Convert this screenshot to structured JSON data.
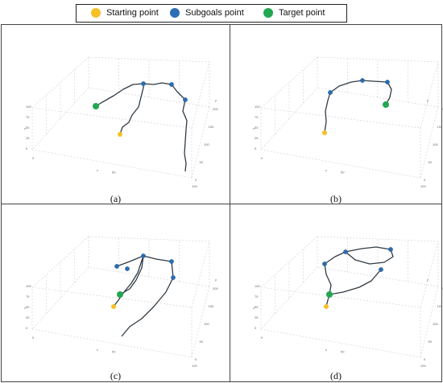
{
  "legend": {
    "start": {
      "label": "Starting point",
      "color": "#f6c026"
    },
    "subgoal": {
      "label": "Subgoals point",
      "color": "#2a6eb5"
    },
    "target": {
      "label": "Target point",
      "color": "#22a850"
    }
  },
  "chart_data": [
    {
      "type": "line3d",
      "panel": "(a)",
      "axes": {
        "x": "x",
        "y": "y",
        "z": "z"
      },
      "y_ticks": [
        "0",
        "50",
        "100",
        "150",
        "200"
      ],
      "x_ticks": [
        "0",
        "50",
        "100"
      ],
      "z_ticks": [
        "0",
        "25",
        "50",
        "75",
        "100"
      ],
      "start": [
        148,
        166
      ],
      "subgoals": [
        [
          177,
          103
        ],
        [
          212,
          104
        ],
        [
          229,
          123
        ]
      ],
      "target": [
        118,
        131
      ],
      "path": [
        [
          148,
          166
        ],
        [
          151,
          157
        ],
        [
          159,
          151
        ],
        [
          163,
          142
        ],
        [
          171,
          132
        ],
        [
          174,
          120
        ],
        [
          177,
          108
        ],
        [
          177,
          103
        ],
        [
          190,
          104
        ],
        [
          200,
          102
        ],
        [
          212,
          104
        ],
        [
          219,
          113
        ],
        [
          229,
          123
        ],
        [
          226,
          137
        ],
        [
          231,
          149
        ],
        [
          230,
          160
        ],
        [
          229,
          175
        ],
        [
          228,
          190
        ],
        [
          230,
          202
        ],
        [
          229,
          212
        ]
      ],
      "path2": [
        [
          118,
          131
        ],
        [
          126,
          126
        ],
        [
          140,
          118
        ],
        [
          152,
          110
        ],
        [
          164,
          104
        ],
        [
          177,
          103
        ]
      ]
    },
    {
      "type": "line3d",
      "panel": "(b)",
      "axes": {
        "x": "x",
        "y": "y",
        "z": "z"
      },
      "y_ticks": [
        "0",
        "50",
        "100",
        "150",
        "200"
      ],
      "x_ticks": [
        "0",
        "50",
        "100"
      ],
      "z_ticks": [
        "0",
        "25",
        "50",
        "75",
        "100"
      ],
      "start": [
        402,
        164
      ],
      "subgoals": [
        [
          409,
          114
        ],
        [
          449,
          99
        ],
        [
          480,
          101
        ]
      ],
      "target": [
        478,
        129
      ],
      "path": [
        [
          402,
          164
        ],
        [
          404,
          150
        ],
        [
          403,
          137
        ],
        [
          406,
          124
        ],
        [
          409,
          114
        ],
        [
          420,
          106
        ],
        [
          435,
          101
        ],
        [
          449,
          99
        ],
        [
          463,
          100
        ],
        [
          480,
          101
        ],
        [
          485,
          110
        ],
        [
          483,
          120
        ],
        [
          478,
          129
        ]
      ]
    },
    {
      "type": "line3d",
      "panel": "(c)",
      "axes": {
        "x": "x",
        "y": "y",
        "z": "z"
      },
      "y_ticks": [
        "0",
        "50",
        "100",
        "150",
        "200"
      ],
      "x_ticks": [
        "0",
        "50",
        "100"
      ],
      "z_ticks": [
        "0",
        "25",
        "50",
        "75",
        "100"
      ],
      "start": [
        140,
        380
      ],
      "subgoals": [
        [
          144,
          330
        ],
        [
          177,
          317
        ],
        [
          212,
          324
        ],
        [
          214,
          344
        ],
        [
          157,
          333
        ]
      ],
      "target": [
        148,
        365
      ],
      "path": [
        [
          140,
          380
        ],
        [
          146,
          372
        ],
        [
          153,
          362
        ],
        [
          162,
          351
        ],
        [
          170,
          338
        ],
        [
          177,
          317
        ],
        [
          175,
          332
        ],
        [
          168,
          347
        ],
        [
          160,
          358
        ],
        [
          148,
          365
        ]
      ],
      "path2": [
        [
          144,
          330
        ],
        [
          160,
          324
        ],
        [
          177,
          317
        ],
        [
          193,
          321
        ],
        [
          212,
          324
        ],
        [
          214,
          344
        ],
        [
          205,
          362
        ],
        [
          190,
          380
        ],
        [
          175,
          395
        ],
        [
          160,
          405
        ],
        [
          150,
          417
        ]
      ]
    },
    {
      "type": "line3d",
      "panel": "(d)",
      "axes": {
        "x": "x",
        "y": "y",
        "z": "z"
      },
      "y_ticks": [
        "0",
        "50",
        "100",
        "150",
        "200"
      ],
      "x_ticks": [
        "0",
        "50",
        "100"
      ],
      "z_ticks": [
        "0",
        "25",
        "50",
        "75",
        "100"
      ],
      "start": [
        404,
        380
      ],
      "subgoals": [
        [
          402,
          327
        ],
        [
          428,
          312
        ],
        [
          484,
          309
        ],
        [
          472,
          334
        ]
      ],
      "target": [
        408,
        365
      ],
      "path": [
        [
          404,
          380
        ],
        [
          406,
          372
        ],
        [
          408,
          365
        ],
        [
          410,
          353
        ],
        [
          404,
          340
        ],
        [
          402,
          327
        ],
        [
          415,
          318
        ],
        [
          428,
          312
        ],
        [
          448,
          308
        ],
        [
          466,
          306
        ],
        [
          484,
          309
        ],
        [
          487,
          318
        ],
        [
          476,
          325
        ],
        [
          458,
          327
        ],
        [
          440,
          322
        ],
        [
          428,
          312
        ]
      ],
      "path2": [
        [
          408,
          365
        ],
        [
          425,
          362
        ],
        [
          445,
          356
        ],
        [
          460,
          348
        ],
        [
          472,
          334
        ]
      ]
    }
  ]
}
